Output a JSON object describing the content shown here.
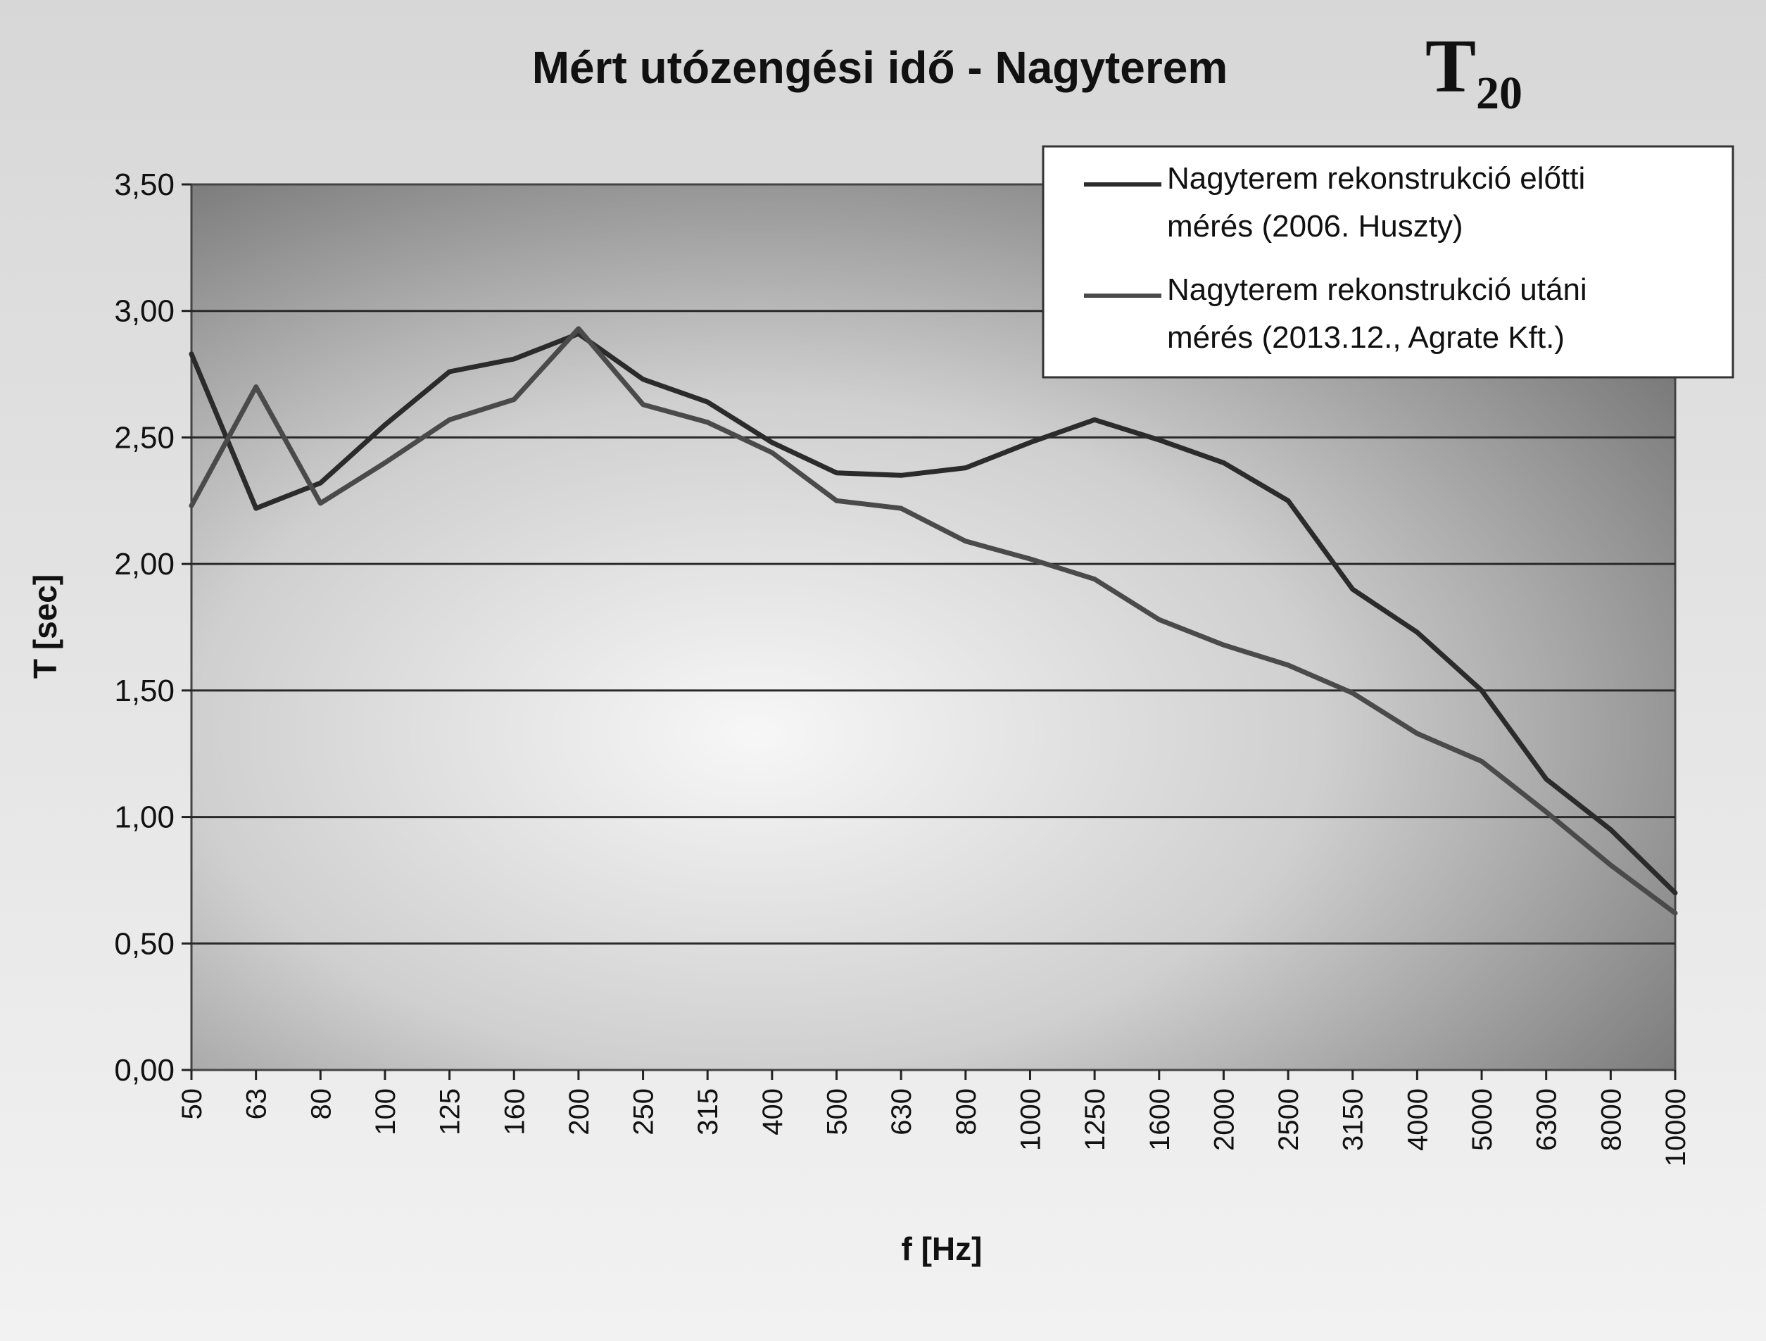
{
  "chart_data": {
    "type": "line",
    "title": "Mért utózengési idő - Nagyterem",
    "badge": {
      "main": "T",
      "sub": "20"
    },
    "xlabel": "f [Hz]",
    "ylabel": "T [sec]",
    "categories": [
      "50",
      "63",
      "80",
      "100",
      "125",
      "160",
      "200",
      "250",
      "315",
      "400",
      "500",
      "630",
      "800",
      "1000",
      "1250",
      "1600",
      "2000",
      "2500",
      "3150",
      "4000",
      "5000",
      "6300",
      "8000",
      "10000"
    ],
    "y_ticks": [
      "0,00",
      "0,50",
      "1,00",
      "1,50",
      "2,00",
      "2,50",
      "3,00",
      "3,50"
    ],
    "ylim": [
      0,
      3.5
    ],
    "grid": true,
    "legend_position": "top-right",
    "series": [
      {
        "name": "Nagyterem rekonstrukció előtti mérés (2006. Huszty)",
        "color": "#2b2b2b",
        "values": [
          2.83,
          2.22,
          2.32,
          2.55,
          2.76,
          2.81,
          2.91,
          2.73,
          2.64,
          2.48,
          2.36,
          2.35,
          2.38,
          2.48,
          2.57,
          2.49,
          2.4,
          2.25,
          1.9,
          1.73,
          1.5,
          1.15,
          0.95,
          0.7
        ]
      },
      {
        "name": "Nagyterem rekonstrukció utáni mérés (2013.12., Agrate Kft.)",
        "color": "#4a4a4a",
        "values": [
          2.23,
          2.7,
          2.24,
          2.4,
          2.57,
          2.65,
          2.93,
          2.63,
          2.56,
          2.44,
          2.25,
          2.22,
          2.09,
          2.02,
          1.94,
          1.78,
          1.68,
          1.6,
          1.49,
          1.33,
          1.22,
          1.02,
          0.81,
          0.62
        ]
      }
    ]
  },
  "legend": {
    "items": [
      {
        "line1": "Nagyterem rekonstrukció előtti",
        "line2": "mérés (2006. Huszty)"
      },
      {
        "line1": "Nagyterem rekonstrukció utáni",
        "line2": "mérés (2013.12., Agrate Kft.)"
      }
    ]
  }
}
